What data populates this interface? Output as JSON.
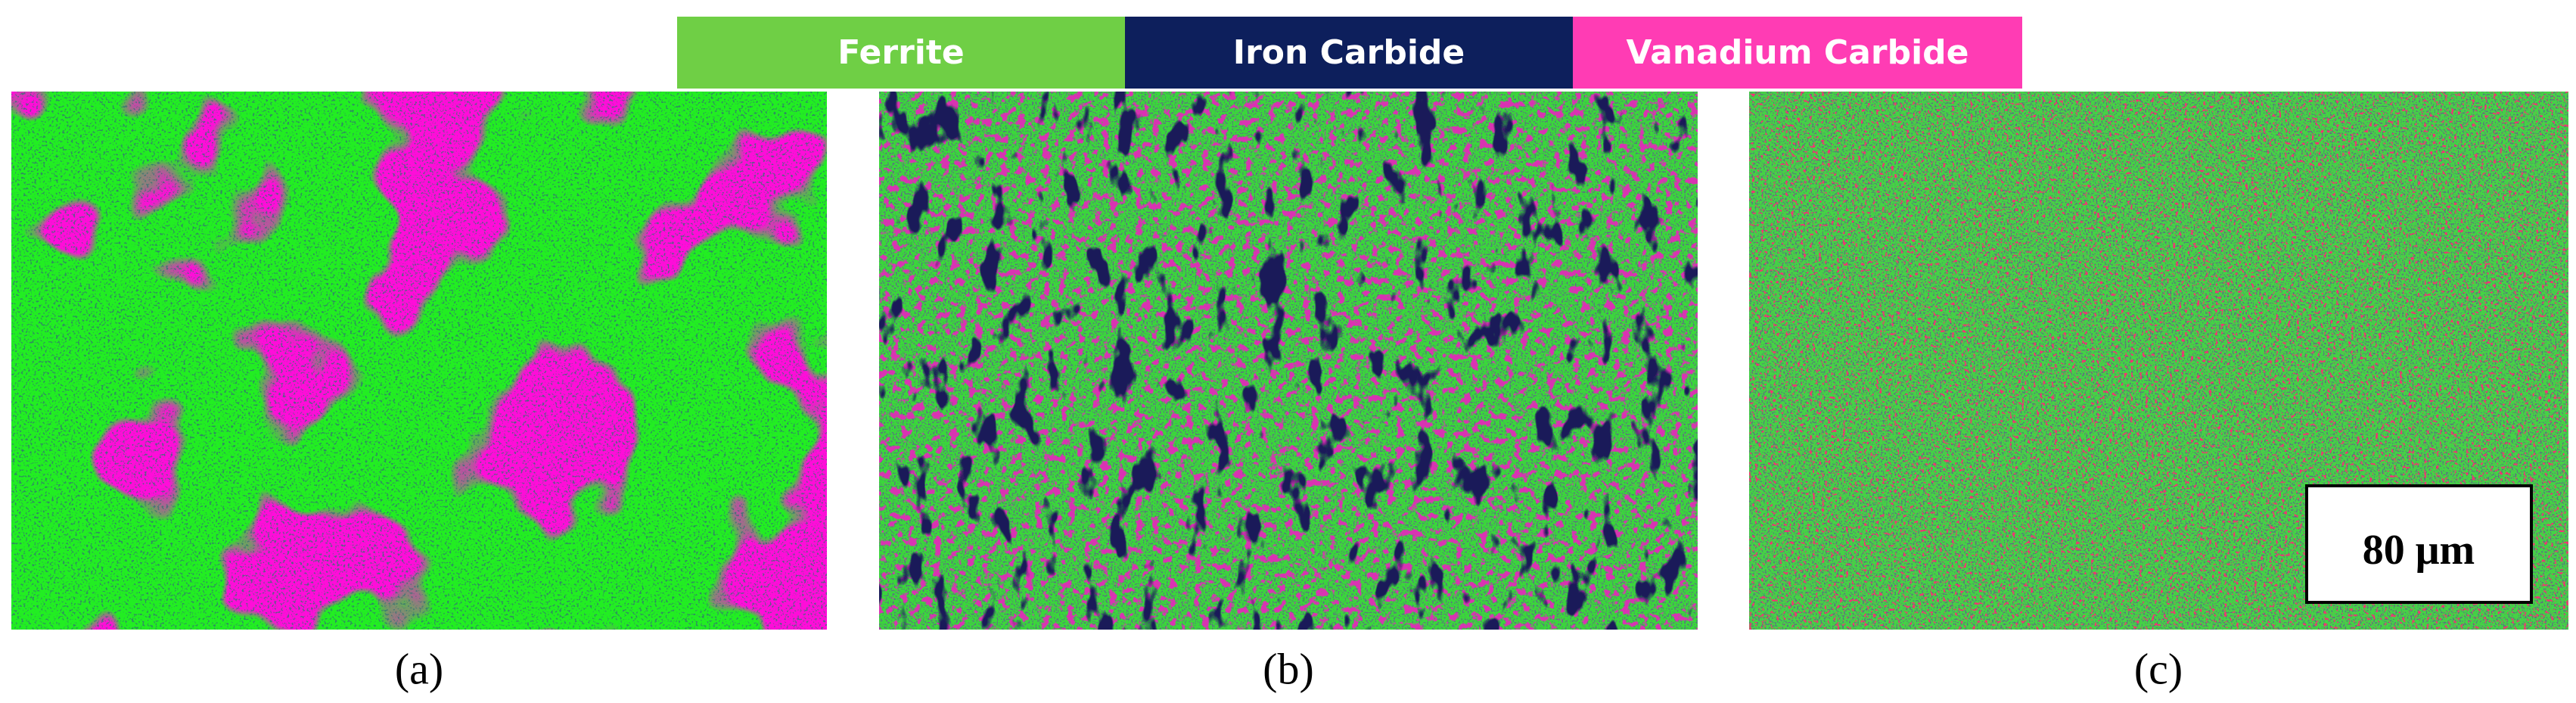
{
  "legend": [
    "Ferrite",
    "Iron Carbide",
    "Vanadium Carbide"
  ],
  "panels": [
    "(a)",
    "(b)",
    "(c)"
  ],
  "scale_bar": "80 μm"
}
